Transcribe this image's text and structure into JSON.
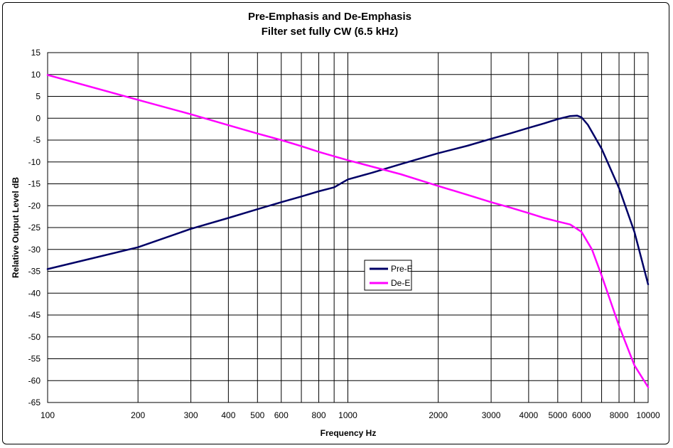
{
  "chart_data": {
    "type": "line",
    "title": "Pre-Emphasis and De-Emphasis",
    "subtitle": "Filter set fully CW (6.5 kHz)",
    "xlabel": "Frequency Hz",
    "ylabel": "Relative Output Level dB",
    "x_scale": "log",
    "xlim": [
      100,
      10000
    ],
    "ylim": [
      -65,
      15
    ],
    "grid": true,
    "legend_position": "center",
    "x_ticks": [
      {
        "value": 100,
        "label": "100"
      },
      {
        "value": 200,
        "label": "200"
      },
      {
        "value": 300,
        "label": "300"
      },
      {
        "value": 400,
        "label": "400"
      },
      {
        "value": 500,
        "label": "500"
      },
      {
        "value": 600,
        "label": "600"
      },
      {
        "value": 800,
        "label": "800"
      },
      {
        "value": 1000,
        "label": "1000"
      },
      {
        "value": 2000,
        "label": "2000"
      },
      {
        "value": 3000,
        "label": "3000"
      },
      {
        "value": 4000,
        "label": "4000"
      },
      {
        "value": 5000,
        "label": "5000"
      },
      {
        "value": 6000,
        "label": "6000"
      },
      {
        "value": 8000,
        "label": "8000"
      },
      {
        "value": 10000,
        "label": "10000"
      }
    ],
    "x_gridlines": [
      100,
      200,
      300,
      400,
      500,
      600,
      700,
      800,
      900,
      1000,
      2000,
      3000,
      4000,
      5000,
      6000,
      7000,
      8000,
      9000,
      10000
    ],
    "y_ticks": [
      15,
      10,
      5,
      0,
      -5,
      -10,
      -15,
      -20,
      -25,
      -30,
      -35,
      -40,
      -45,
      -50,
      -55,
      -60,
      -65
    ],
    "series": [
      {
        "name": "Pre-E",
        "color": "#000066",
        "x": [
          100,
          200,
          300,
          400,
          500,
          600,
          700,
          800,
          900,
          1000,
          1200,
          1500,
          2000,
          2500,
          3000,
          3500,
          4000,
          4500,
          5000,
          5500,
          5800,
          6000,
          6300,
          7000,
          8000,
          9000,
          10000
        ],
        "y": [
          -34.5,
          -29.5,
          -25.3,
          -22.8,
          -20.8,
          -19.2,
          -17.9,
          -16.7,
          -15.8,
          -14.0,
          -12.5,
          -10.5,
          -8.0,
          -6.3,
          -4.7,
          -3.4,
          -2.2,
          -1.2,
          -0.2,
          0.5,
          0.6,
          0.2,
          -1.5,
          -7.0,
          -16.0,
          -26.0,
          -38.0
        ]
      },
      {
        "name": "De-E",
        "color": "#ff00ff",
        "x": [
          100,
          200,
          300,
          400,
          500,
          600,
          700,
          800,
          900,
          1000,
          1500,
          2000,
          2500,
          3000,
          3500,
          4000,
          4500,
          5000,
          5500,
          6000,
          6500,
          7000,
          8000,
          9000,
          10000
        ],
        "y": [
          9.9,
          4.2,
          0.9,
          -1.6,
          -3.5,
          -5.0,
          -6.4,
          -7.7,
          -8.7,
          -9.6,
          -12.8,
          -15.5,
          -17.5,
          -19.2,
          -20.5,
          -21.7,
          -22.8,
          -23.6,
          -24.3,
          -26.0,
          -30.0,
          -36.0,
          -47.5,
          -56.5,
          -61.5
        ]
      }
    ]
  }
}
